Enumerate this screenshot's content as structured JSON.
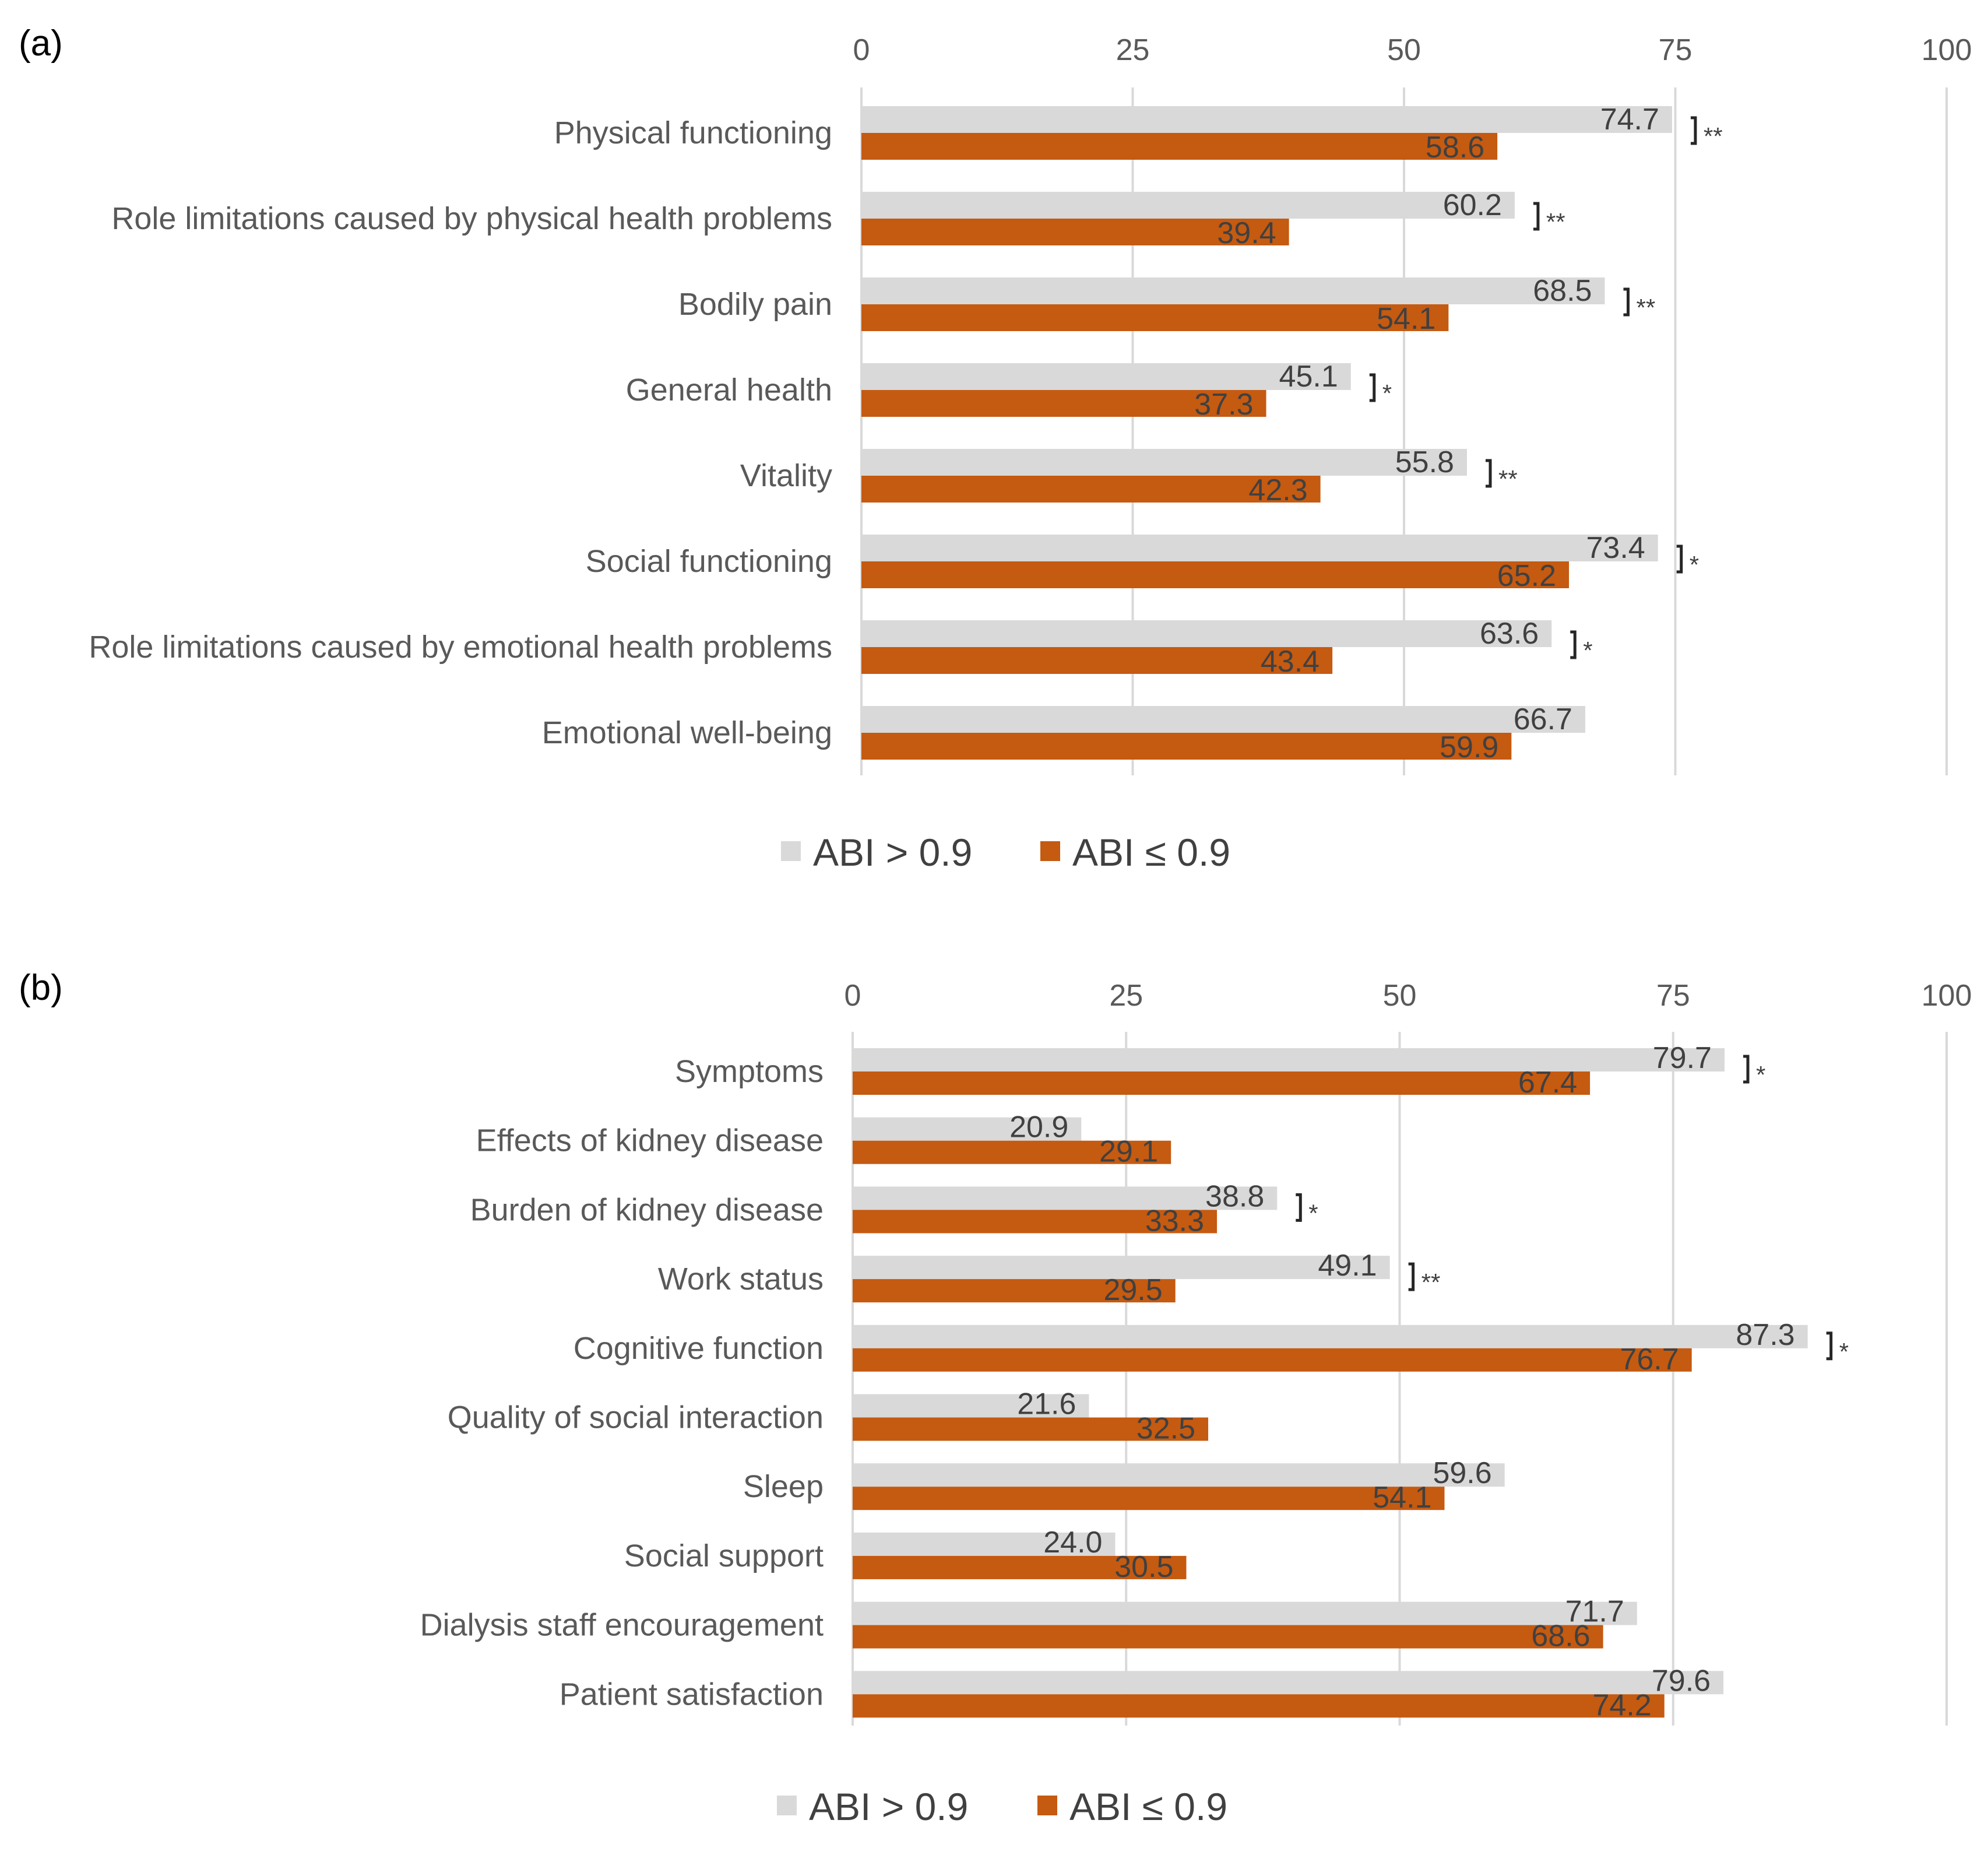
{
  "colors": {
    "abi_high": "#d9d9d9",
    "abi_low": "#c55a11",
    "grid": "#d9d9d9",
    "text": "#595959",
    "axis": "#bfbfbf"
  },
  "chart_data": [
    {
      "type": "bar",
      "orientation": "horizontal",
      "panel_label": "(a)",
      "xlim": [
        0,
        100
      ],
      "ticks": [
        "0",
        "25",
        "50",
        "75",
        "100"
      ],
      "tick_values": [
        0,
        25,
        50,
        75,
        100
      ],
      "grid": true,
      "legend_position": "bottom",
      "categories": [
        "Physical functioning",
        "Role limitations caused by physical health problems",
        "Bodily pain",
        "General health",
        "Vitality",
        "Social functioning",
        "Role limitations caused by emotional health problems",
        "Emotional well-being"
      ],
      "series": [
        {
          "name": "ABI > 0.9",
          "values": [
            74.7,
            60.2,
            68.5,
            45.1,
            55.8,
            73.4,
            63.6,
            66.7
          ],
          "labels": [
            "74.7",
            "60.2",
            "68.5",
            "45.1",
            "55.8",
            "73.4",
            "63.6",
            "66.7"
          ]
        },
        {
          "name": "ABI ≤ 0.9",
          "values": [
            58.6,
            39.4,
            54.1,
            37.3,
            42.3,
            65.2,
            43.4,
            59.9
          ],
          "labels": [
            "58.6",
            "39.4",
            "54.1",
            "37.3",
            "42.3",
            "65.2",
            "43.4",
            "59.9"
          ]
        }
      ],
      "significance": [
        "**",
        "**",
        "**",
        "*",
        "**",
        "*",
        "*",
        ""
      ],
      "legend": [
        "ABI > 0.9",
        "ABI ≤ 0.9"
      ]
    },
    {
      "type": "bar",
      "orientation": "horizontal",
      "panel_label": "(b)",
      "xlim": [
        0,
        100
      ],
      "ticks": [
        "0",
        "25",
        "50",
        "75",
        "100"
      ],
      "tick_values": [
        0,
        25,
        50,
        75,
        100
      ],
      "grid": true,
      "legend_position": "bottom",
      "categories": [
        "Symptoms",
        "Effects of kidney disease",
        "Burden of kidney disease",
        "Work status",
        "Cognitive function",
        "Quality of social interaction",
        "Sleep",
        "Social support",
        "Dialysis staff encouragement",
        "Patient satisfaction"
      ],
      "series": [
        {
          "name": "ABI > 0.9",
          "values": [
            79.7,
            20.9,
            38.8,
            49.1,
            87.3,
            21.6,
            59.6,
            24.0,
            71.7,
            79.6
          ],
          "labels": [
            "79.7",
            "20.9",
            "38.8",
            "49.1",
            "87.3",
            "21.6",
            "59.6",
            "24.0",
            "71.7",
            "79.6"
          ]
        },
        {
          "name": "ABI ≤ 0.9",
          "values": [
            67.4,
            29.1,
            33.3,
            29.5,
            76.7,
            32.5,
            54.1,
            30.5,
            68.6,
            74.2
          ],
          "labels": [
            "67.4",
            "29.1",
            "33.3",
            "29.5",
            "76.7",
            "32.5",
            "54.1",
            "30.5",
            "68.6",
            "74.2"
          ]
        }
      ],
      "significance": [
        "*",
        "",
        "*",
        "**",
        "*",
        "",
        "",
        "",
        "",
        ""
      ],
      "legend": [
        "ABI > 0.9",
        "ABI ≤ 0.9"
      ]
    }
  ]
}
